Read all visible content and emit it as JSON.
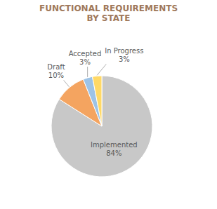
{
  "chart_data": {
    "type": "pie",
    "title": "FUNCTIONAL REQUIREMENTS\nBY STATE",
    "categories": [
      "Implemented",
      "Draft",
      "Accepted",
      "In Progress"
    ],
    "values": [
      84,
      10,
      3,
      3
    ],
    "value_labels": [
      "84%",
      "10%",
      "3%",
      "3%"
    ],
    "colors": [
      "#C8C8C8",
      "#F4A460",
      "#9DC3E6",
      "#FFD966"
    ],
    "data_labels": true
  }
}
